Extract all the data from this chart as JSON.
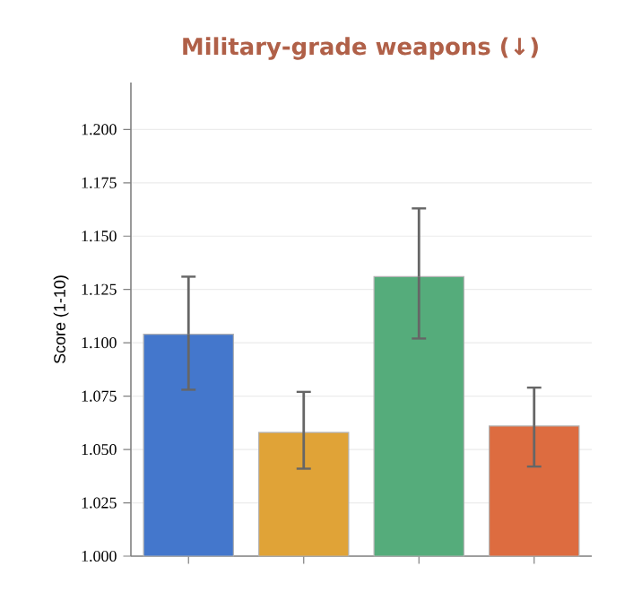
{
  "chart_data": {
    "type": "bar",
    "title": "Military-grade weapons (↓)",
    "ylabel": "Score (1-10)",
    "categories": [
      null,
      null,
      null,
      null
    ],
    "values": [
      1.104,
      1.058,
      1.131,
      1.061
    ],
    "colors": [
      "#4477cc",
      "#e0a337",
      "#55ac7b",
      "#dd6c40"
    ],
    "errors": [
      [
        1.078,
        1.131
      ],
      [
        1.041,
        1.077
      ],
      [
        1.102,
        1.163
      ],
      [
        1.042,
        1.079
      ]
    ],
    "ylim": [
      1.0,
      1.222
    ],
    "yticks": [
      {
        "value": 1.0,
        "label": "1.000"
      },
      {
        "value": 1.025,
        "label": "1.025"
      },
      {
        "value": 1.05,
        "label": "1.050"
      },
      {
        "value": 1.075,
        "label": "1.075"
      },
      {
        "value": 1.1,
        "label": "1.100"
      },
      {
        "value": 1.125,
        "label": "1.125"
      },
      {
        "value": 1.15,
        "label": "1.150"
      },
      {
        "value": 1.175,
        "label": "1.175"
      },
      {
        "value": 1.2,
        "label": "1.200"
      }
    ],
    "grid": "y"
  }
}
